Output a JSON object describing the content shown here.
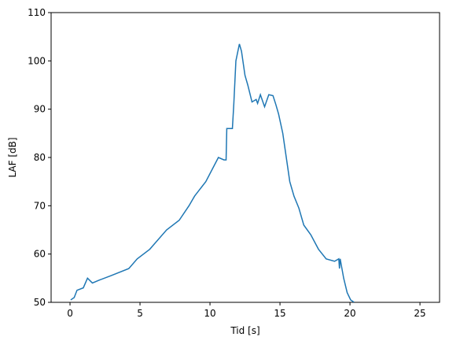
{
  "chart_data": {
    "type": "line",
    "xlabel": "Tid [s]",
    "ylabel": "LAF [dB]",
    "x": [
      0.05,
      0.3,
      0.5,
      0.95,
      1.25,
      1.6,
      2.0,
      2.9,
      4.2,
      4.8,
      5.7,
      6.0,
      6.9,
      7.8,
      8.5,
      8.9,
      9.7,
      10.6,
      11.0,
      11.15,
      11.2,
      11.6,
      11.7,
      11.85,
      12.1,
      12.25,
      12.5,
      12.7,
      13.0,
      13.3,
      13.4,
      13.6,
      13.9,
      14.2,
      14.5,
      14.7,
      14.9,
      15.2,
      15.45,
      15.7,
      16.0,
      16.35,
      16.7,
      17.2,
      17.75,
      18.3,
      18.9,
      19.2,
      19.25,
      19.3,
      19.55,
      19.8,
      20.05,
      20.3
    ],
    "series": [
      {
        "name": "LAF",
        "color": "#1f77b4",
        "values": [
          50.5,
          51,
          52.5,
          53,
          55,
          54,
          54.5,
          55.5,
          57,
          59,
          61,
          62,
          65,
          67,
          70,
          72,
          75,
          80,
          79.5,
          79.5,
          86,
          86,
          91,
          100,
          103.5,
          102,
          97,
          95,
          91.5,
          92,
          91.2,
          93,
          90.5,
          93,
          92.8,
          91,
          89,
          85,
          80,
          75,
          72,
          69.5,
          66,
          64,
          61,
          59,
          58.5,
          59,
          57,
          59,
          55,
          52,
          50.5,
          50
        ]
      }
    ],
    "xlim": [
      -1.35,
      26.4
    ],
    "ylim": [
      50,
      110
    ],
    "xticks": [
      0,
      5,
      10,
      15,
      20,
      25
    ],
    "yticks": [
      50,
      60,
      70,
      80,
      90,
      100,
      110
    ]
  }
}
